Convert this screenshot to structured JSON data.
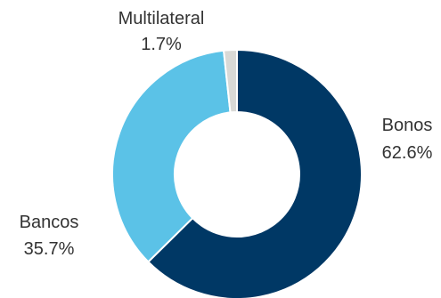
{
  "chart_data": {
    "type": "pie",
    "subtype": "donut",
    "title": "",
    "slices": [
      {
        "label": "Bonos",
        "value": 62.6,
        "value_label": "62.6%",
        "color": "#003865"
      },
      {
        "label": "Bancos",
        "value": 35.7,
        "value_label": "35.7%",
        "color": "#5BC2E7"
      },
      {
        "label": "Multilateral",
        "value": 1.7,
        "value_label": "1.7%",
        "color": "#D9D9D6"
      }
    ],
    "start": "top",
    "direction": "clockwise",
    "legend": "none"
  }
}
